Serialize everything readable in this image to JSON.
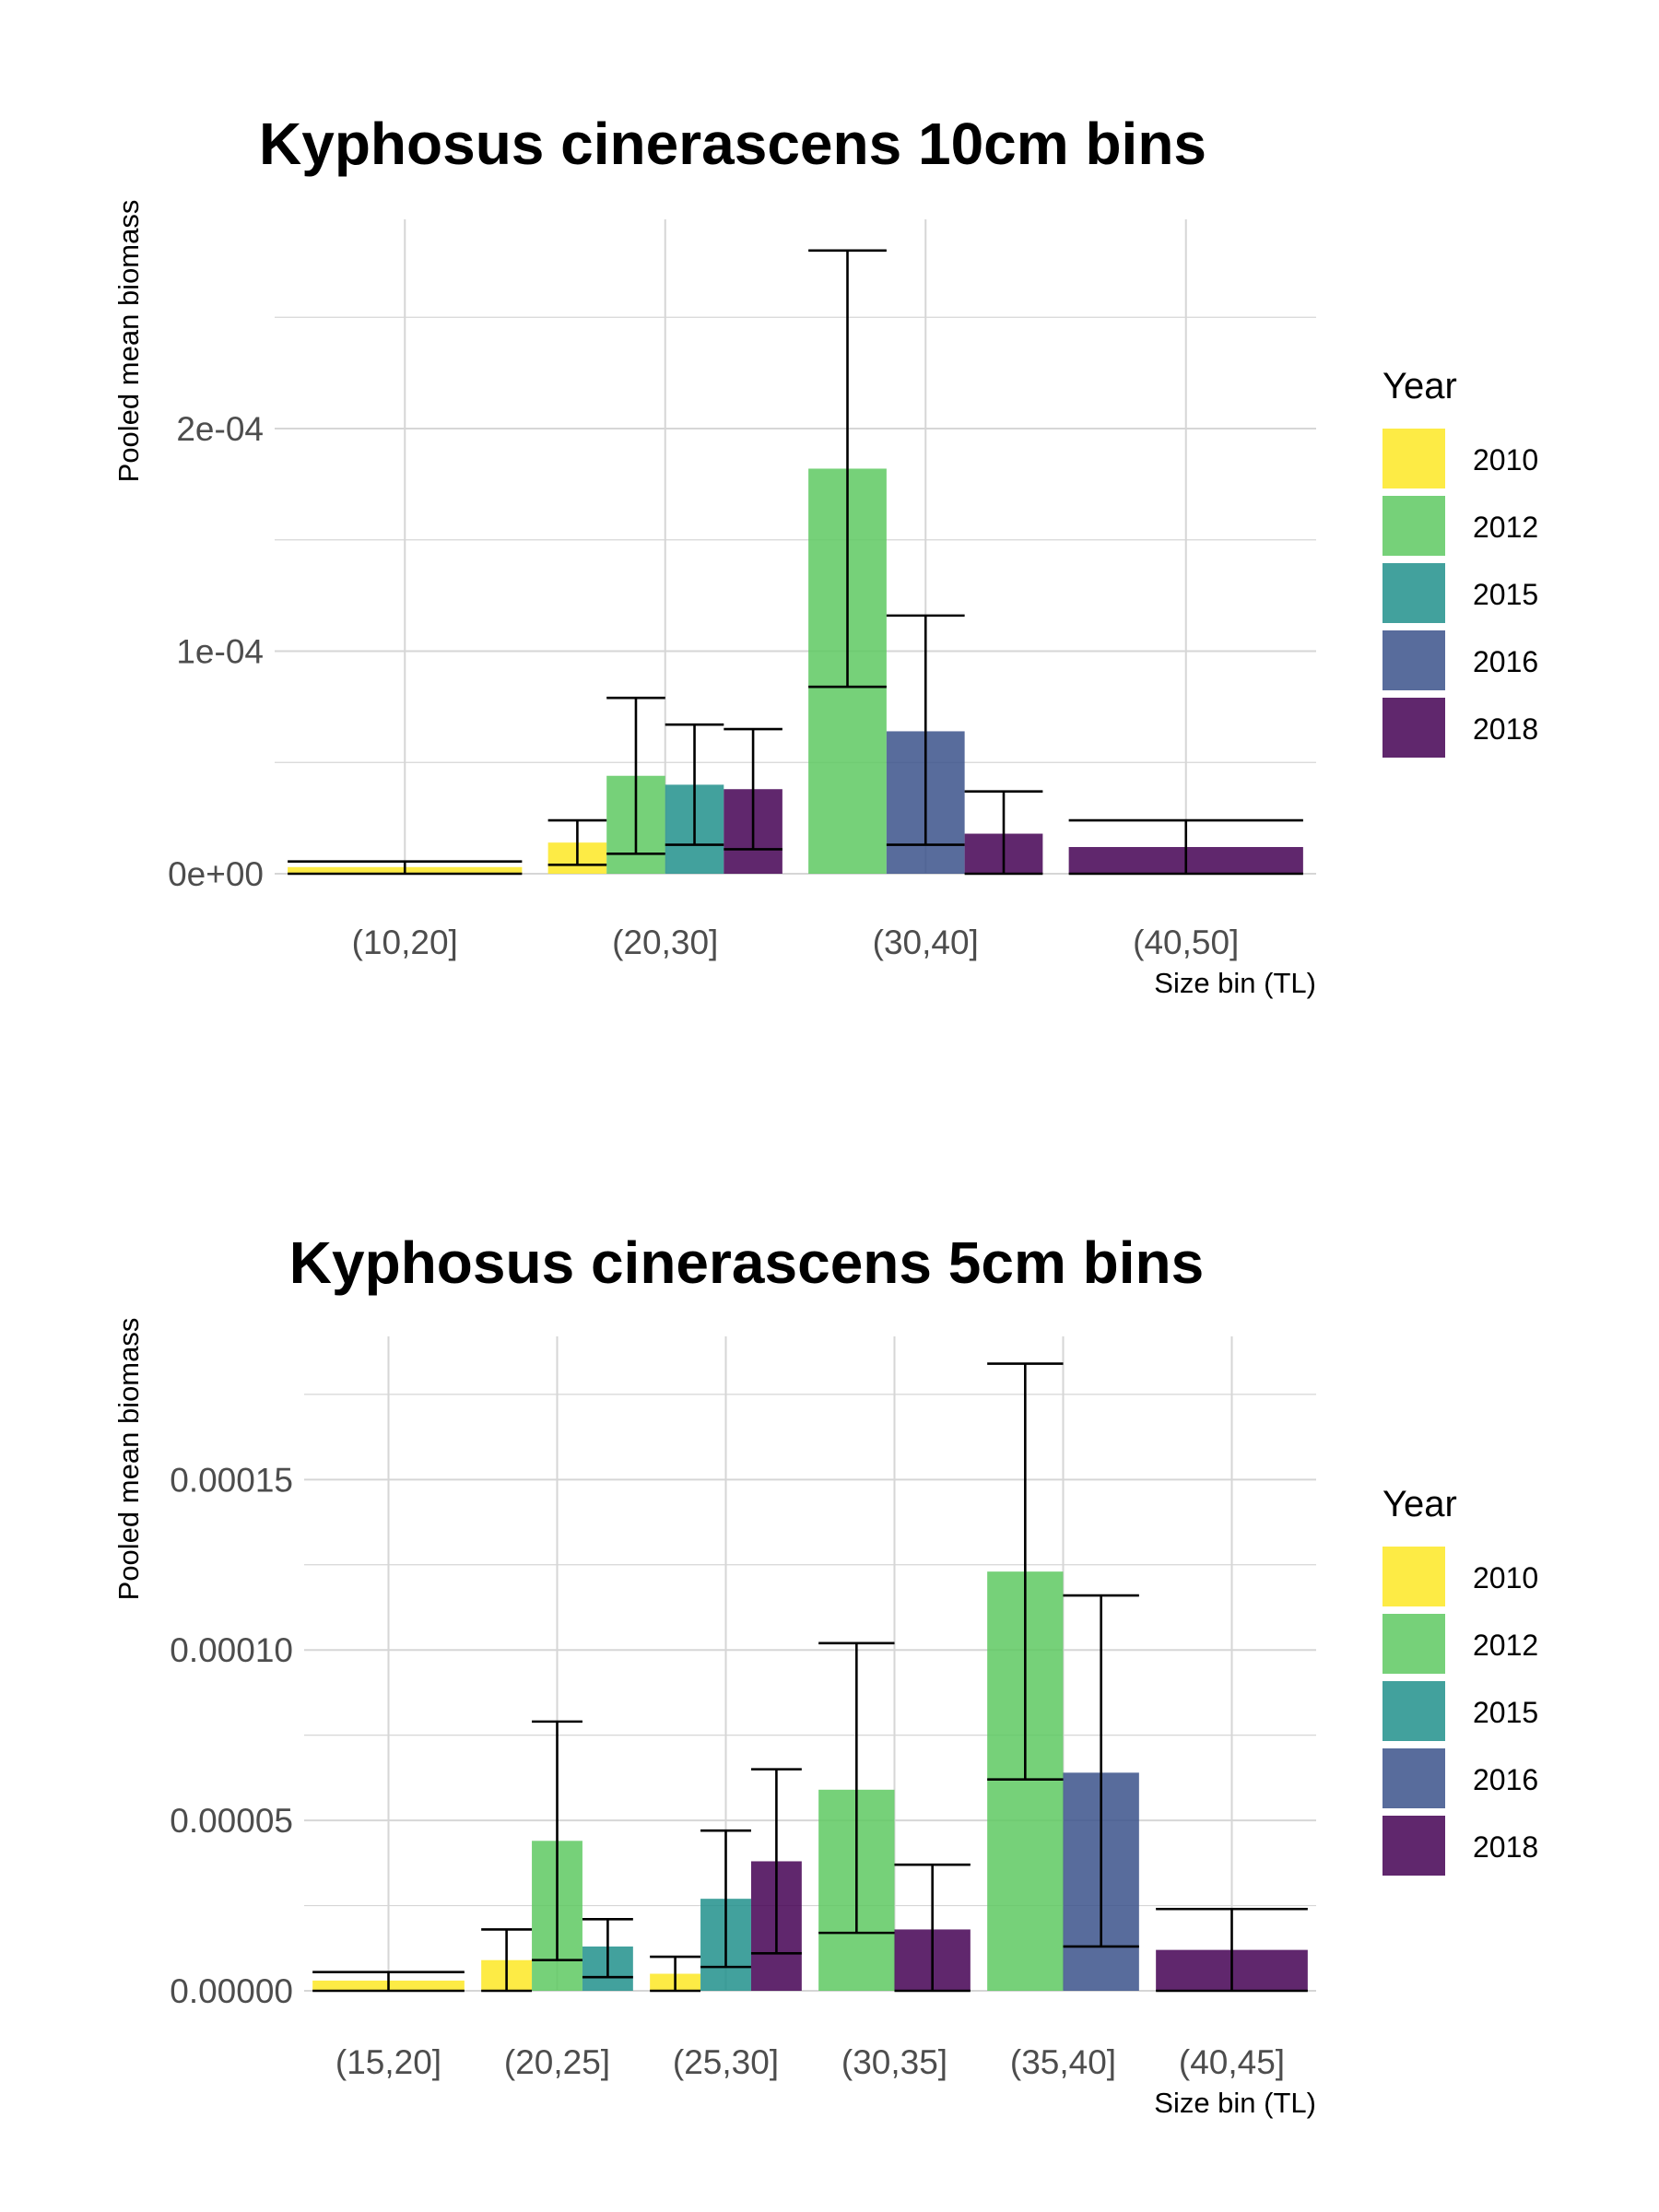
{
  "chart_data": [
    {
      "type": "bar",
      "title": "Kyphosus cinerascens 10cm bins",
      "xlabel": "Size bin (TL)",
      "ylabel": "Pooled mean biomass",
      "categories": [
        "(10,20]",
        "(20,30]",
        "(30,40]",
        "(40,50]"
      ],
      "ylim": [
        0,
        0.000294
      ],
      "yticks": [
        0,
        0.0001,
        0.0002
      ],
      "ytick_labels": [
        "0e+00",
        "1e-04",
        "2e-04"
      ],
      "grid": true,
      "legend": {
        "title": "Year",
        "position": "right",
        "items": [
          {
            "label": "2010",
            "color": "#FDE725"
          },
          {
            "label": "2012",
            "color": "#5EC962"
          },
          {
            "label": "2015",
            "color": "#21908C"
          },
          {
            "label": "2016",
            "color": "#3B528B"
          },
          {
            "label": "2018",
            "color": "#440154"
          }
        ]
      },
      "groups": [
        {
          "category": "(10,20]",
          "bars": [
            {
              "year": "2010",
              "value": 3e-06,
              "err_low": 0.0,
              "err_high": 5.5e-06
            }
          ]
        },
        {
          "category": "(20,30]",
          "bars": [
            {
              "year": "2010",
              "value": 1.4e-05,
              "err_low": 4e-06,
              "err_high": 2.4e-05
            },
            {
              "year": "2012",
              "value": 4.4e-05,
              "err_low": 9e-06,
              "err_high": 7.9e-05
            },
            {
              "year": "2015",
              "value": 4e-05,
              "err_low": 1.3e-05,
              "err_high": 6.7e-05
            },
            {
              "year": "2018",
              "value": 3.8e-05,
              "err_low": 1.1e-05,
              "err_high": 6.5e-05
            }
          ]
        },
        {
          "category": "(30,40]",
          "bars": [
            {
              "year": "2012",
              "value": 0.000182,
              "err_low": 8.4e-05,
              "err_high": 0.00028
            },
            {
              "year": "2016",
              "value": 6.4e-05,
              "err_low": 1.3e-05,
              "err_high": 0.000116
            },
            {
              "year": "2018",
              "value": 1.8e-05,
              "err_low": 0.0,
              "err_high": 3.7e-05
            }
          ]
        },
        {
          "category": "(40,50]",
          "bars": [
            {
              "year": "2018",
              "value": 1.2e-05,
              "err_low": 0.0,
              "err_high": 2.4e-05
            }
          ]
        }
      ]
    },
    {
      "type": "bar",
      "title": "Kyphosus cinerascens 5cm bins",
      "xlabel": "Size bin (TL)",
      "ylabel": "Pooled mean biomass",
      "categories": [
        "(15,20]",
        "(20,25]",
        "(25,30]",
        "(30,35]",
        "(35,40]",
        "(40,45]"
      ],
      "ylim": [
        0,
        0.000192
      ],
      "yticks": [
        0,
        5e-05,
        0.0001,
        0.00015
      ],
      "ytick_labels": [
        "0.00000",
        "0.00005",
        "0.00010",
        "0.00015"
      ],
      "grid": true,
      "legend": {
        "title": "Year",
        "position": "right",
        "items": [
          {
            "label": "2010",
            "color": "#FDE725"
          },
          {
            "label": "2012",
            "color": "#5EC962"
          },
          {
            "label": "2015",
            "color": "#21908C"
          },
          {
            "label": "2016",
            "color": "#3B528B"
          },
          {
            "label": "2018",
            "color": "#440154"
          }
        ]
      },
      "groups": [
        {
          "category": "(15,20]",
          "bars": [
            {
              "year": "2010",
              "value": 3e-06,
              "err_low": 0.0,
              "err_high": 5.5e-06
            }
          ]
        },
        {
          "category": "(20,25]",
          "bars": [
            {
              "year": "2010",
              "value": 9e-06,
              "err_low": 0.0,
              "err_high": 1.8e-05
            },
            {
              "year": "2012",
              "value": 4.4e-05,
              "err_low": 9e-06,
              "err_high": 7.9e-05
            },
            {
              "year": "2015",
              "value": 1.3e-05,
              "err_low": 4e-06,
              "err_high": 2.1e-05
            }
          ]
        },
        {
          "category": "(25,30]",
          "bars": [
            {
              "year": "2010",
              "value": 5e-06,
              "err_low": 0.0,
              "err_high": 1e-05
            },
            {
              "year": "2015",
              "value": 2.7e-05,
              "err_low": 7e-06,
              "err_high": 4.7e-05
            },
            {
              "year": "2018",
              "value": 3.8e-05,
              "err_low": 1.1e-05,
              "err_high": 6.5e-05
            }
          ]
        },
        {
          "category": "(30,35]",
          "bars": [
            {
              "year": "2012",
              "value": 5.9e-05,
              "err_low": 1.7e-05,
              "err_high": 0.000102
            },
            {
              "year": "2018",
              "value": 1.8e-05,
              "err_low": 0.0,
              "err_high": 3.7e-05
            }
          ]
        },
        {
          "category": "(35,40]",
          "bars": [
            {
              "year": "2012",
              "value": 0.000123,
              "err_low": 6.2e-05,
              "err_high": 0.000184
            },
            {
              "year": "2016",
              "value": 6.4e-05,
              "err_low": 1.3e-05,
              "err_high": 0.000116
            }
          ]
        },
        {
          "category": "(40,45]",
          "bars": [
            {
              "year": "2018",
              "value": 1.2e-05,
              "err_low": 0.0,
              "err_high": 2.4e-05
            }
          ]
        }
      ]
    }
  ]
}
